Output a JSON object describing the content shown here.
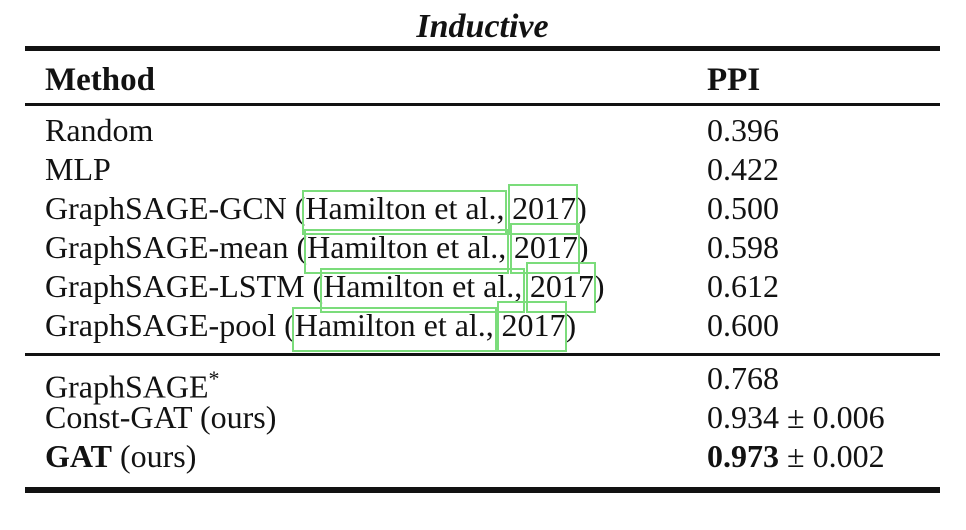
{
  "table": {
    "title": "Inductive",
    "columns": {
      "method": "Method",
      "value": "PPI"
    },
    "link_box_color": "#7bdc7b",
    "section1": [
      {
        "method": "Random",
        "value": "0.396"
      },
      {
        "method": "MLP",
        "value": "0.422"
      },
      {
        "pre": "GraphSAGE-GCN (",
        "author": "Hamilton et al.,",
        "year": "2017",
        "post": ")",
        "value": "0.500"
      },
      {
        "pre": "GraphSAGE-mean (",
        "author": "Hamilton et al.,",
        "year": "2017",
        "post": ")",
        "value": "0.598"
      },
      {
        "pre": "GraphSAGE-LSTM (",
        "author": "Hamilton et al.,",
        "year": "2017",
        "post": ")",
        "value": "0.612"
      },
      {
        "pre": "GraphSAGE-pool (",
        "author": "Hamilton et al.,",
        "year": "2017",
        "post": ")",
        "value": "0.600"
      }
    ],
    "section2": [
      {
        "method": "GraphSAGE",
        "sup": "*",
        "value": "0.768"
      },
      {
        "method": "Const-GAT (ours)",
        "value": "0.934 ± 0.006"
      },
      {
        "method_bold": "GAT",
        "method_rest": " (ours)",
        "value_bold": "0.973",
        "value_rest": " ± 0.002"
      }
    ]
  }
}
